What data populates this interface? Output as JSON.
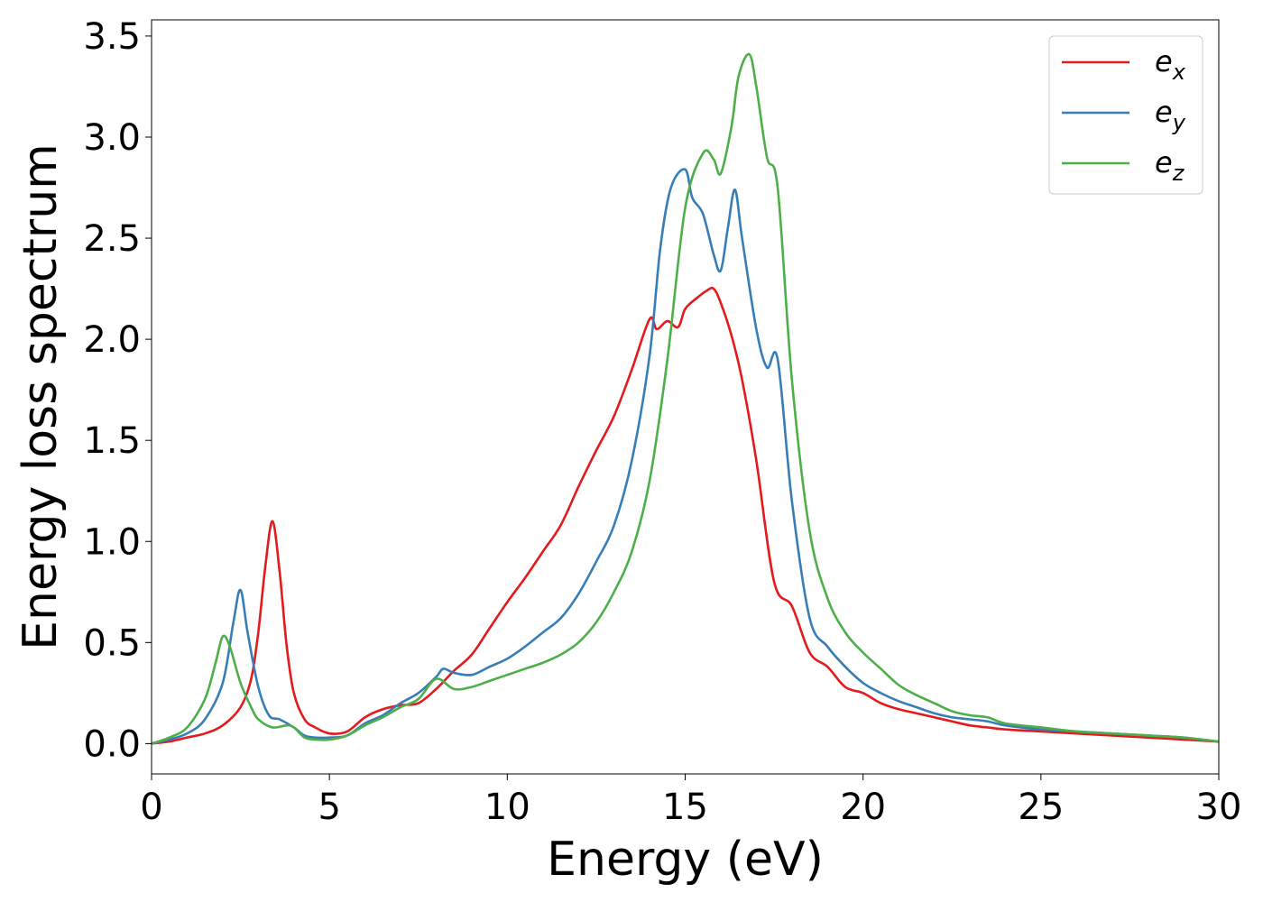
{
  "chart_data": {
    "type": "line",
    "xlabel": "Energy (eV)",
    "ylabel": "Energy loss spectrum",
    "xlim": [
      0,
      30
    ],
    "ylim": [
      -0.15,
      3.58
    ],
    "xticks": [
      "0",
      "5",
      "10",
      "15",
      "20",
      "25",
      "30"
    ],
    "yticks": [
      "0.0",
      "0.5",
      "1.0",
      "1.5",
      "2.0",
      "2.5",
      "3.0",
      "3.5"
    ],
    "grid": false,
    "legend_position": "top-right",
    "series": [
      {
        "name": "e",
        "subscript": "x",
        "color": "#e41a1c",
        "x": [
          0,
          0.5,
          1.0,
          1.5,
          2.0,
          2.5,
          2.8,
          3.0,
          3.2,
          3.4,
          3.6,
          3.8,
          4.0,
          4.3,
          4.6,
          5.0,
          5.5,
          6.0,
          6.5,
          7.0,
          7.5,
          8.0,
          8.5,
          9.0,
          9.5,
          10.0,
          10.5,
          11.0,
          11.5,
          12.0,
          12.5,
          13.0,
          13.5,
          14.0,
          14.2,
          14.5,
          14.8,
          15.0,
          15.3,
          15.6,
          15.8,
          16.0,
          16.3,
          16.6,
          17.0,
          17.5,
          18.0,
          18.5,
          19.0,
          19.5,
          20.0,
          20.5,
          21.0,
          21.5,
          22.0,
          22.5,
          23.0,
          23.5,
          24.0,
          25.0,
          26.0,
          27.0,
          28.0,
          29.0,
          30.0
        ],
        "y": [
          0,
          0.01,
          0.03,
          0.05,
          0.09,
          0.18,
          0.32,
          0.55,
          0.88,
          1.1,
          0.85,
          0.48,
          0.25,
          0.12,
          0.08,
          0.05,
          0.06,
          0.13,
          0.17,
          0.19,
          0.2,
          0.27,
          0.36,
          0.44,
          0.57,
          0.7,
          0.82,
          0.95,
          1.08,
          1.27,
          1.45,
          1.62,
          1.85,
          2.1,
          2.05,
          2.09,
          2.06,
          2.15,
          2.2,
          2.24,
          2.25,
          2.18,
          2.02,
          1.8,
          1.4,
          0.8,
          0.68,
          0.45,
          0.38,
          0.28,
          0.25,
          0.2,
          0.17,
          0.15,
          0.13,
          0.11,
          0.09,
          0.08,
          0.07,
          0.06,
          0.05,
          0.04,
          0.03,
          0.02,
          0.01
        ]
      },
      {
        "name": "e",
        "subscript": "y",
        "color": "#377eb8",
        "x": [
          0,
          0.5,
          1.0,
          1.5,
          2.0,
          2.3,
          2.5,
          2.7,
          3.0,
          3.3,
          3.6,
          4.0,
          4.3,
          4.6,
          5.0,
          5.5,
          6.0,
          6.5,
          7.0,
          7.5,
          8.0,
          8.2,
          8.5,
          9.0,
          9.5,
          10.0,
          10.5,
          11.0,
          11.5,
          12.0,
          12.5,
          13.0,
          13.5,
          14.0,
          14.3,
          14.6,
          15.0,
          15.2,
          15.5,
          15.8,
          16.0,
          16.2,
          16.4,
          16.6,
          17.0,
          17.3,
          17.6,
          18.0,
          18.5,
          19.0,
          19.5,
          20.0,
          20.5,
          21.0,
          21.5,
          22.0,
          22.5,
          23.0,
          23.5,
          24.0,
          25.0,
          26.0,
          27.0,
          28.0,
          29.0,
          30.0
        ],
        "y": [
          0,
          0.02,
          0.05,
          0.12,
          0.3,
          0.6,
          0.76,
          0.55,
          0.28,
          0.14,
          0.12,
          0.08,
          0.04,
          0.03,
          0.03,
          0.04,
          0.1,
          0.14,
          0.2,
          0.25,
          0.33,
          0.37,
          0.35,
          0.34,
          0.38,
          0.42,
          0.48,
          0.55,
          0.62,
          0.74,
          0.9,
          1.08,
          1.4,
          1.92,
          2.45,
          2.75,
          2.84,
          2.7,
          2.62,
          2.42,
          2.34,
          2.55,
          2.74,
          2.5,
          2.05,
          1.86,
          1.9,
          1.2,
          0.62,
          0.48,
          0.38,
          0.3,
          0.25,
          0.21,
          0.18,
          0.15,
          0.13,
          0.12,
          0.11,
          0.09,
          0.07,
          0.06,
          0.05,
          0.04,
          0.03,
          0.01
        ]
      },
      {
        "name": "e",
        "subscript": "z",
        "color": "#4daf4a",
        "x": [
          0,
          0.5,
          1.0,
          1.5,
          1.8,
          2.0,
          2.2,
          2.5,
          2.8,
          3.0,
          3.4,
          3.8,
          4.0,
          4.3,
          4.6,
          5.0,
          5.5,
          6.0,
          6.5,
          7.0,
          7.5,
          8.0,
          8.5,
          9.0,
          9.5,
          10.0,
          10.5,
          11.0,
          11.5,
          12.0,
          12.5,
          13.0,
          13.5,
          14.0,
          14.5,
          15.0,
          15.5,
          15.8,
          16.0,
          16.3,
          16.5,
          16.8,
          17.0,
          17.3,
          17.6,
          18.0,
          18.5,
          19.0,
          19.5,
          20.0,
          20.5,
          21.0,
          21.5,
          22.0,
          22.5,
          23.0,
          23.5,
          24.0,
          25.0,
          26.0,
          27.0,
          28.0,
          29.0,
          30.0
        ],
        "y": [
          0,
          0.03,
          0.08,
          0.22,
          0.4,
          0.53,
          0.48,
          0.3,
          0.18,
          0.12,
          0.08,
          0.09,
          0.08,
          0.03,
          0.02,
          0.02,
          0.04,
          0.09,
          0.13,
          0.18,
          0.22,
          0.32,
          0.27,
          0.28,
          0.31,
          0.34,
          0.37,
          0.4,
          0.44,
          0.5,
          0.6,
          0.75,
          0.95,
          1.3,
          1.9,
          2.65,
          2.92,
          2.89,
          2.82,
          3.05,
          3.3,
          3.41,
          3.25,
          2.9,
          2.75,
          1.8,
          1.05,
          0.72,
          0.55,
          0.45,
          0.37,
          0.29,
          0.24,
          0.2,
          0.16,
          0.14,
          0.13,
          0.1,
          0.08,
          0.06,
          0.05,
          0.04,
          0.03,
          0.01
        ]
      }
    ]
  }
}
